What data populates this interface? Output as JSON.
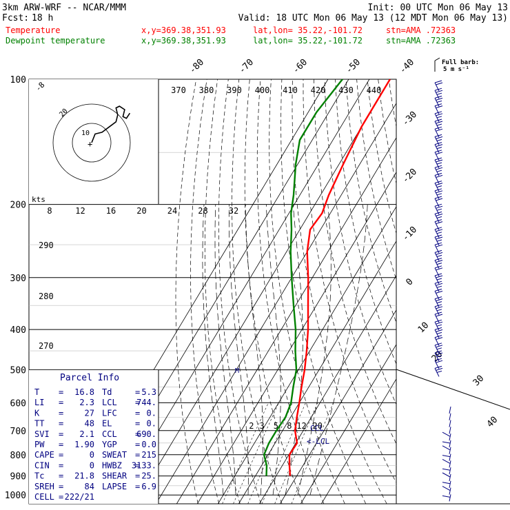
{
  "header": {
    "model_label": "3km ARW-WRF -- NCAR/MMM",
    "init_label": "Init: 00 UTC Mon 06 May 13",
    "fcst_label": "Fcst:",
    "fcst_hours": "18 h",
    "valid_label": "Valid: 18 UTC Mon 06 May 13 (12 MDT Mon 06 May 13)",
    "temp_line": {
      "name": "Temperature",
      "xy": "x,y=369.38,351.93",
      "latlon": "lat,lon= 35.22,-101.72",
      "stn": "stn=AMA .72363"
    },
    "dew_line": {
      "name": "Dewpoint temperature",
      "xy": "x,y=369.38,351.93",
      "latlon": "lat,lon= 35.22,-101.72",
      "stn": "stn=AMA .72363"
    }
  },
  "barb_legend": {
    "line1": "Full barb:",
    "line2": "5 m s⁻¹"
  },
  "parcel_info": {
    "title": "Parcel Info",
    "rows": [
      {
        "k1": "T",
        "v1": "16.8",
        "k2": "Td",
        "v2": "5.3"
      },
      {
        "k1": "LI",
        "v1": "2.3",
        "k2": "LCL",
        "v2": "744."
      },
      {
        "k1": "K",
        "v1": "27",
        "k2": "LFC",
        "v2": "0."
      },
      {
        "k1": "TT",
        "v1": "48",
        "k2": "EL",
        "v2": "0."
      },
      {
        "k1": "SVI",
        "v1": "2.1",
        "k2": "CCL",
        "v2": "690."
      },
      {
        "k1": "PW",
        "v1": "1.90",
        "k2": "YGP",
        "v2": "0.0"
      },
      {
        "k1": "CAPE",
        "v1": "0",
        "k2": "SWEAT",
        "v2": "215"
      },
      {
        "k1": "CIN",
        "v1": "0",
        "k2": "HWBZ",
        "v2": "3133."
      },
      {
        "k1": "Tc",
        "v1": "21.8",
        "k2": "SHEAR",
        "v2": "25."
      },
      {
        "k1": "SREH",
        "v1": "84",
        "k2": "LAPSE",
        "v2": "6.9"
      },
      {
        "k1": "CELL",
        "v1": "222/21",
        "k2": "",
        "v2": ""
      }
    ]
  },
  "hodograph": {
    "units_label": "kts",
    "ring_labels": [
      "8",
      "12",
      "16",
      "20",
      "24",
      "28",
      "32"
    ],
    "circle_labels": [
      "20",
      "10"
    ]
  },
  "markers": {
    "ccl_label": "CCL",
    "lcl_label": "<-LCL",
    "mark_label": "M"
  },
  "colors": {
    "temperature": "#ff0000",
    "dewpoint": "#008000",
    "info_text": "#000080",
    "barbs": "#000080",
    "grid": "#000000"
  },
  "chart_data": {
    "type": "line",
    "title": "",
    "diagram": "skew-T log-P",
    "pressure_levels": [
      "100",
      "200",
      "300",
      "400",
      "500",
      "600",
      "700",
      "800",
      "900",
      "1000"
    ],
    "isotherm_labels": [
      "-80",
      "-70",
      "-60",
      "-50",
      "-40",
      "-30",
      "-20",
      "-10",
      "0",
      "10",
      "20",
      "30",
      "40"
    ],
    "theta_labels": [
      "290",
      "280",
      "270"
    ],
    "theta_e_labels": [
      "370",
      "380",
      "390",
      "400",
      "410",
      "420",
      "430",
      "440"
    ],
    "mixing_ratio_labels": [
      "2",
      "3",
      "5",
      "8",
      "12",
      "20"
    ],
    "series": [
      {
        "name": "Temperature",
        "color": "#ff0000",
        "points": [
          {
            "p": 900,
            "t": 16.8
          },
          {
            "p": 850,
            "t": 13.5
          },
          {
            "p": 800,
            "t": 10.3
          },
          {
            "p": 750,
            "t": 10.6
          },
          {
            "p": 700,
            "t": 6.0
          },
          {
            "p": 650,
            "t": 3.0
          },
          {
            "p": 600,
            "t": 0.0
          },
          {
            "p": 550,
            "t": -3.5
          },
          {
            "p": 500,
            "t": -7.0
          },
          {
            "p": 450,
            "t": -11.5
          },
          {
            "p": 400,
            "t": -17.0
          },
          {
            "p": 350,
            "t": -24.0
          },
          {
            "p": 300,
            "t": -32.0
          },
          {
            "p": 260,
            "t": -40.0
          },
          {
            "p": 230,
            "t": -45.0
          },
          {
            "p": 210,
            "t": -44.0
          },
          {
            "p": 190,
            "t": -46.0
          },
          {
            "p": 160,
            "t": -48.0
          },
          {
            "p": 130,
            "t": -50.0
          },
          {
            "p": 110,
            "t": -50.0
          },
          {
            "p": 100,
            "t": -50.0
          }
        ]
      },
      {
        "name": "Dewpoint temperature",
        "color": "#008000",
        "points": [
          {
            "p": 900,
            "t": 5.3
          },
          {
            "p": 850,
            "t": 2.5
          },
          {
            "p": 800,
            "t": -2.0
          },
          {
            "p": 750,
            "t": -3.0
          },
          {
            "p": 700,
            "t": -3.0
          },
          {
            "p": 650,
            "t": -2.5
          },
          {
            "p": 600,
            "t": -4.0
          },
          {
            "p": 550,
            "t": -7.5
          },
          {
            "p": 500,
            "t": -11.0
          },
          {
            "p": 450,
            "t": -17.0
          },
          {
            "p": 400,
            "t": -23.0
          },
          {
            "p": 350,
            "t": -31.0
          },
          {
            "p": 300,
            "t": -40.0
          },
          {
            "p": 260,
            "t": -48.0
          },
          {
            "p": 230,
            "t": -54.0
          },
          {
            "p": 210,
            "t": -59.0
          },
          {
            "p": 190,
            "t": -63.0
          },
          {
            "p": 160,
            "t": -71.0
          },
          {
            "p": 140,
            "t": -76.0
          },
          {
            "p": 120,
            "t": -76.0
          },
          {
            "p": 100,
            "t": -73.0
          }
        ]
      }
    ],
    "hodograph_trace": [
      [
        0,
        0
      ],
      [
        2,
        5
      ],
      [
        6,
        6
      ],
      [
        10,
        9
      ],
      [
        14,
        12
      ],
      [
        15,
        16
      ],
      [
        14,
        20
      ],
      [
        16,
        21
      ],
      [
        19,
        19
      ],
      [
        18,
        15
      ],
      [
        20,
        14
      ],
      [
        22,
        17
      ]
    ]
  }
}
